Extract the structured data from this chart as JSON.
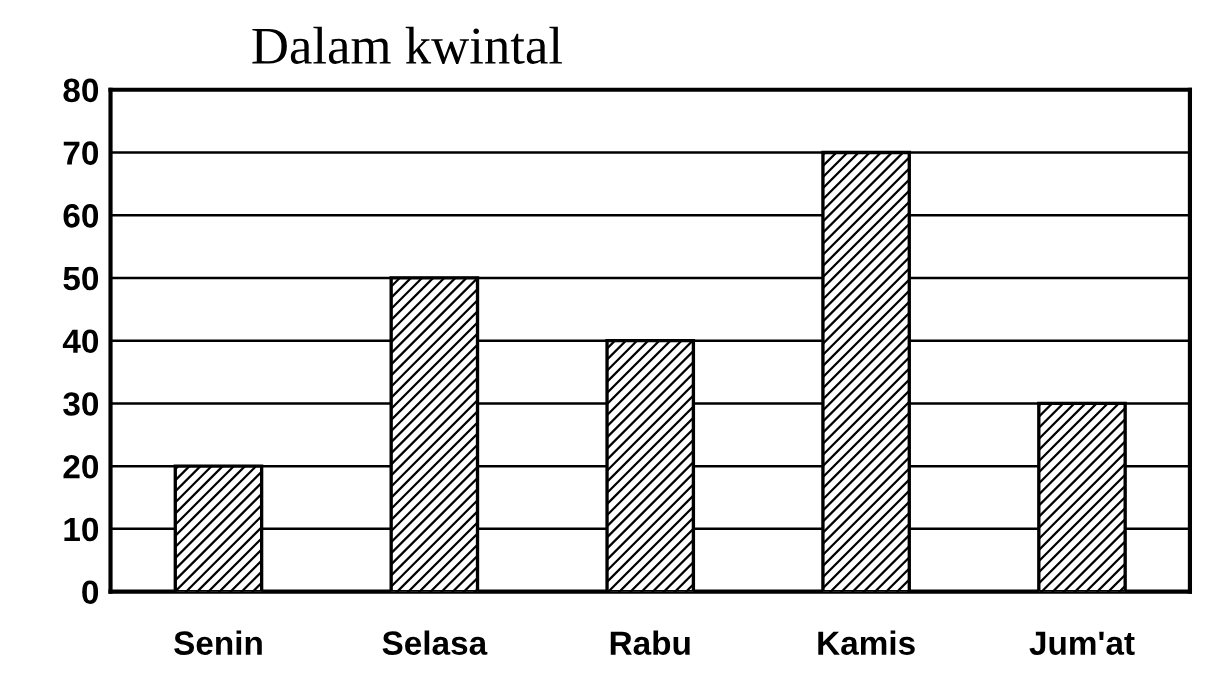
{
  "chart_data": {
    "type": "bar",
    "title": "Dalam kwintal",
    "categories": [
      "Senin",
      "Selasa",
      "Rabu",
      "Kamis",
      "Jum'at"
    ],
    "values": [
      20,
      50,
      40,
      70,
      30
    ],
    "color": "#000000",
    "ylim": [
      0,
      80
    ],
    "yticks": [
      0,
      10,
      20,
      30,
      40,
      50,
      60,
      70,
      80
    ],
    "grid": "y"
  }
}
